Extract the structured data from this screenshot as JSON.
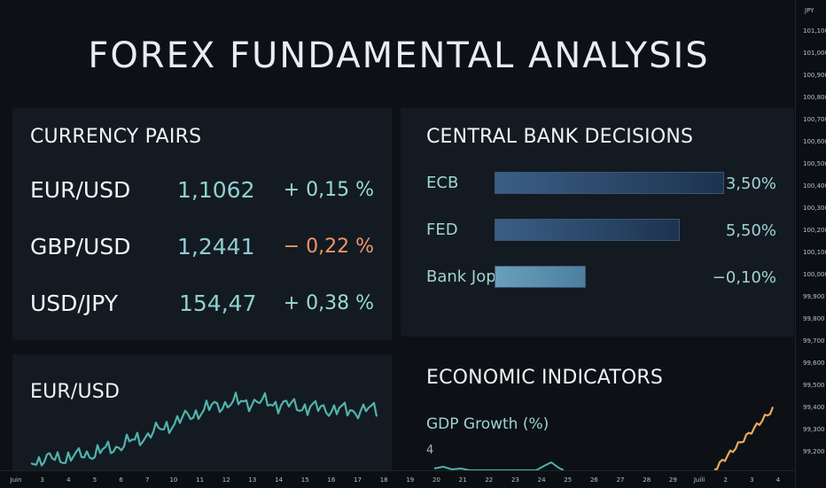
{
  "title": "FOREX FUNDAMENTAL ANALYSIS",
  "currency_pairs": {
    "heading": "CURRENCY PAIRS",
    "rows": [
      {
        "pair": "EUR/USD",
        "rate": "1,1062",
        "change": "+ 0,15 %",
        "direction": "up"
      },
      {
        "pair": "GBP/USD",
        "rate": "1,2441",
        "change": "− 0,22 %",
        "direction": "down"
      },
      {
        "pair": "USD/JPY",
        "rate": "154,47",
        "change": "+ 0,38 %",
        "direction": "up"
      }
    ]
  },
  "central_bank": {
    "heading": "CENTRAL BANK DECISIONS",
    "rows": [
      {
        "bank": "ECB",
        "rate": "3,50%",
        "fill": 0.81
      },
      {
        "bank": "FED",
        "rate": "5,50%",
        "fill": 0.65
      },
      {
        "bank": "Bank Jopt",
        "rate": "−0,10%",
        "fill": 0.32
      }
    ]
  },
  "eurusd_chart": {
    "heading": "EUR/USD",
    "line_color": "#4fb3ad"
  },
  "economic": {
    "heading": "ECONOMIC INDICATORS",
    "subheading": "GDP Growth (%)",
    "value": "4",
    "line_color": "#e9a95a"
  },
  "price_axis": {
    "currency": "JPY",
    "ticks": [
      "101,100",
      "101,000",
      "100,900",
      "100,800",
      "100,700",
      "100,600",
      "100,500",
      "100,400",
      "100,300",
      "100,200",
      "100,100",
      "100,000",
      "99,900",
      "99,800",
      "99,700",
      "99,600",
      "99,500",
      "99,400",
      "99,300",
      "99,200"
    ]
  },
  "time_axis": {
    "ticks": [
      "Juin",
      "3",
      "4",
      "5",
      "6",
      "7",
      "10",
      "11",
      "12",
      "13",
      "14",
      "15",
      "16",
      "17",
      "18",
      "19",
      "20",
      "21",
      "22",
      "23",
      "24",
      "25",
      "26",
      "27",
      "28",
      "29",
      "Juill",
      "2",
      "3",
      "4"
    ]
  },
  "colors": {
    "background": "#0d1116",
    "panel": "#141a21",
    "positive": "#9ad8d8",
    "negative": "#f0956b"
  }
}
